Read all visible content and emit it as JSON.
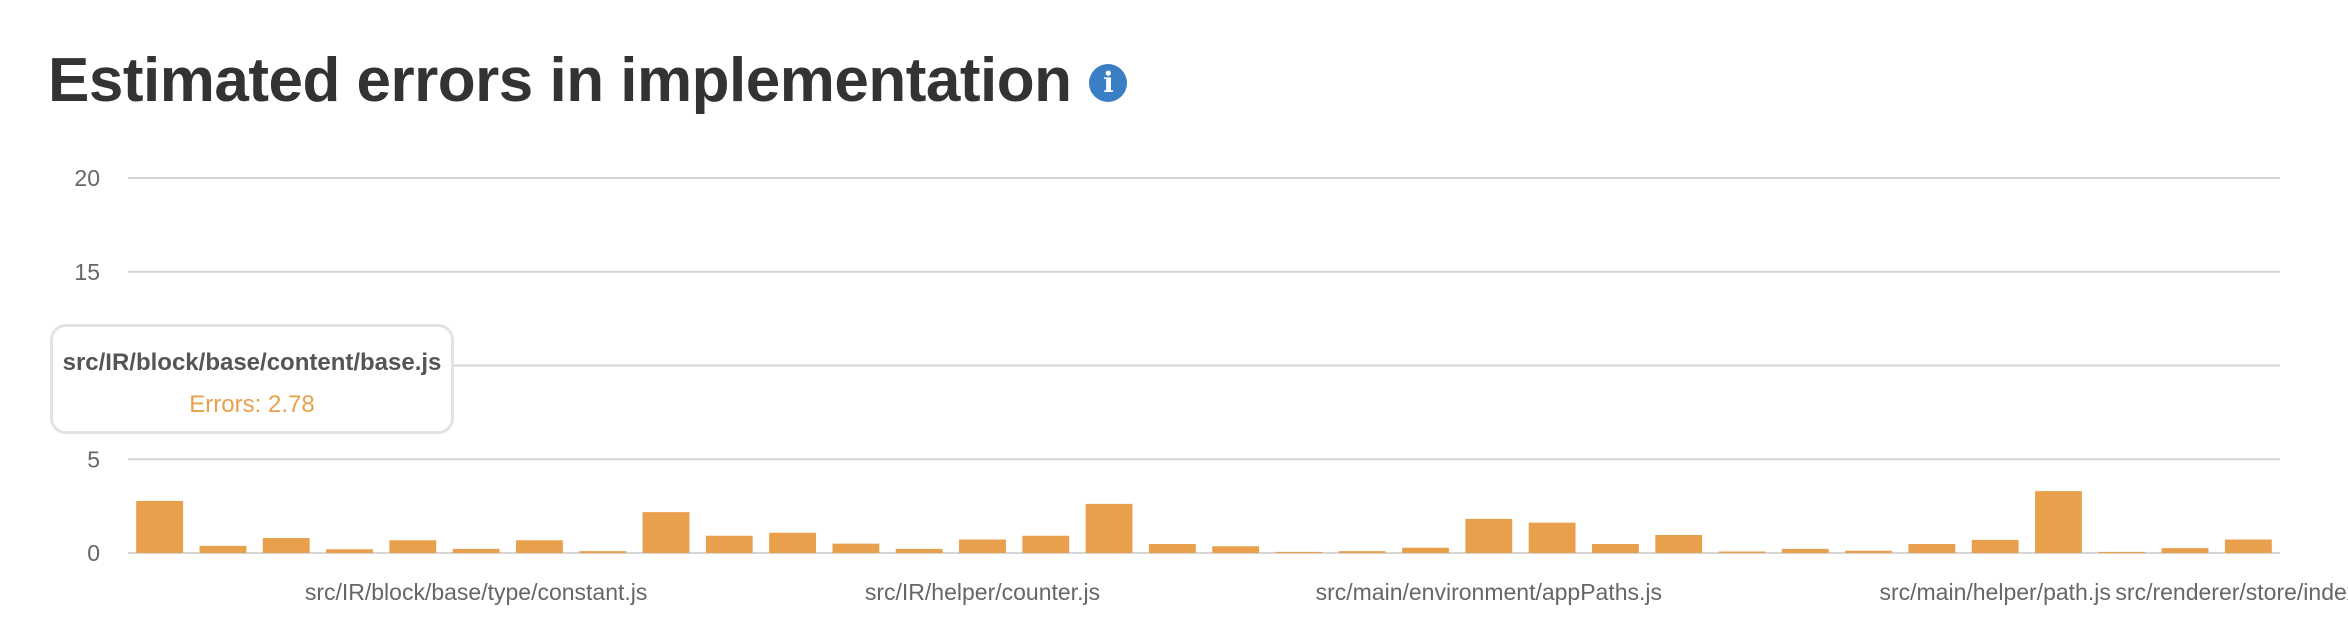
{
  "page": {
    "title": "Estimated errors in implementation",
    "info_icon": "info-icon"
  },
  "colors": {
    "bar": "#e9a04d",
    "grid": "#d6d6d6",
    "axis_text": "#666666",
    "info": "#3a7fc6"
  },
  "tooltip": {
    "title": "src/IR/block/base/content/base.js",
    "value_text": "Errors: 2.78"
  },
  "chart_data": {
    "type": "bar",
    "title": "Estimated errors in implementation",
    "xlabel": "",
    "ylabel": "",
    "ylim": [
      0,
      20
    ],
    "y_ticks": [
      0,
      5,
      15,
      20
    ],
    "grid": true,
    "x_tick_labels": [
      {
        "index": 5,
        "label": "src/IR/block/base/type/constant.js"
      },
      {
        "index": 13,
        "label": "src/IR/helper/counter.js"
      },
      {
        "index": 21,
        "label": "src/main/environment/appPaths.js"
      },
      {
        "index": 29,
        "label": "src/main/helper/path.js"
      },
      {
        "index": 33,
        "label": "src/renderer/store/index.js"
      }
    ],
    "values": [
      2.78,
      0.38,
      0.8,
      0.2,
      0.68,
      0.22,
      0.68,
      0.1,
      2.18,
      0.92,
      1.08,
      0.5,
      0.22,
      0.72,
      0.92,
      2.62,
      0.48,
      0.36,
      0.06,
      0.1,
      0.28,
      1.82,
      1.62,
      0.48,
      0.96,
      0.08,
      0.22,
      0.12,
      0.48,
      0.7,
      3.3,
      0.06,
      0.26,
      0.72
    ]
  }
}
